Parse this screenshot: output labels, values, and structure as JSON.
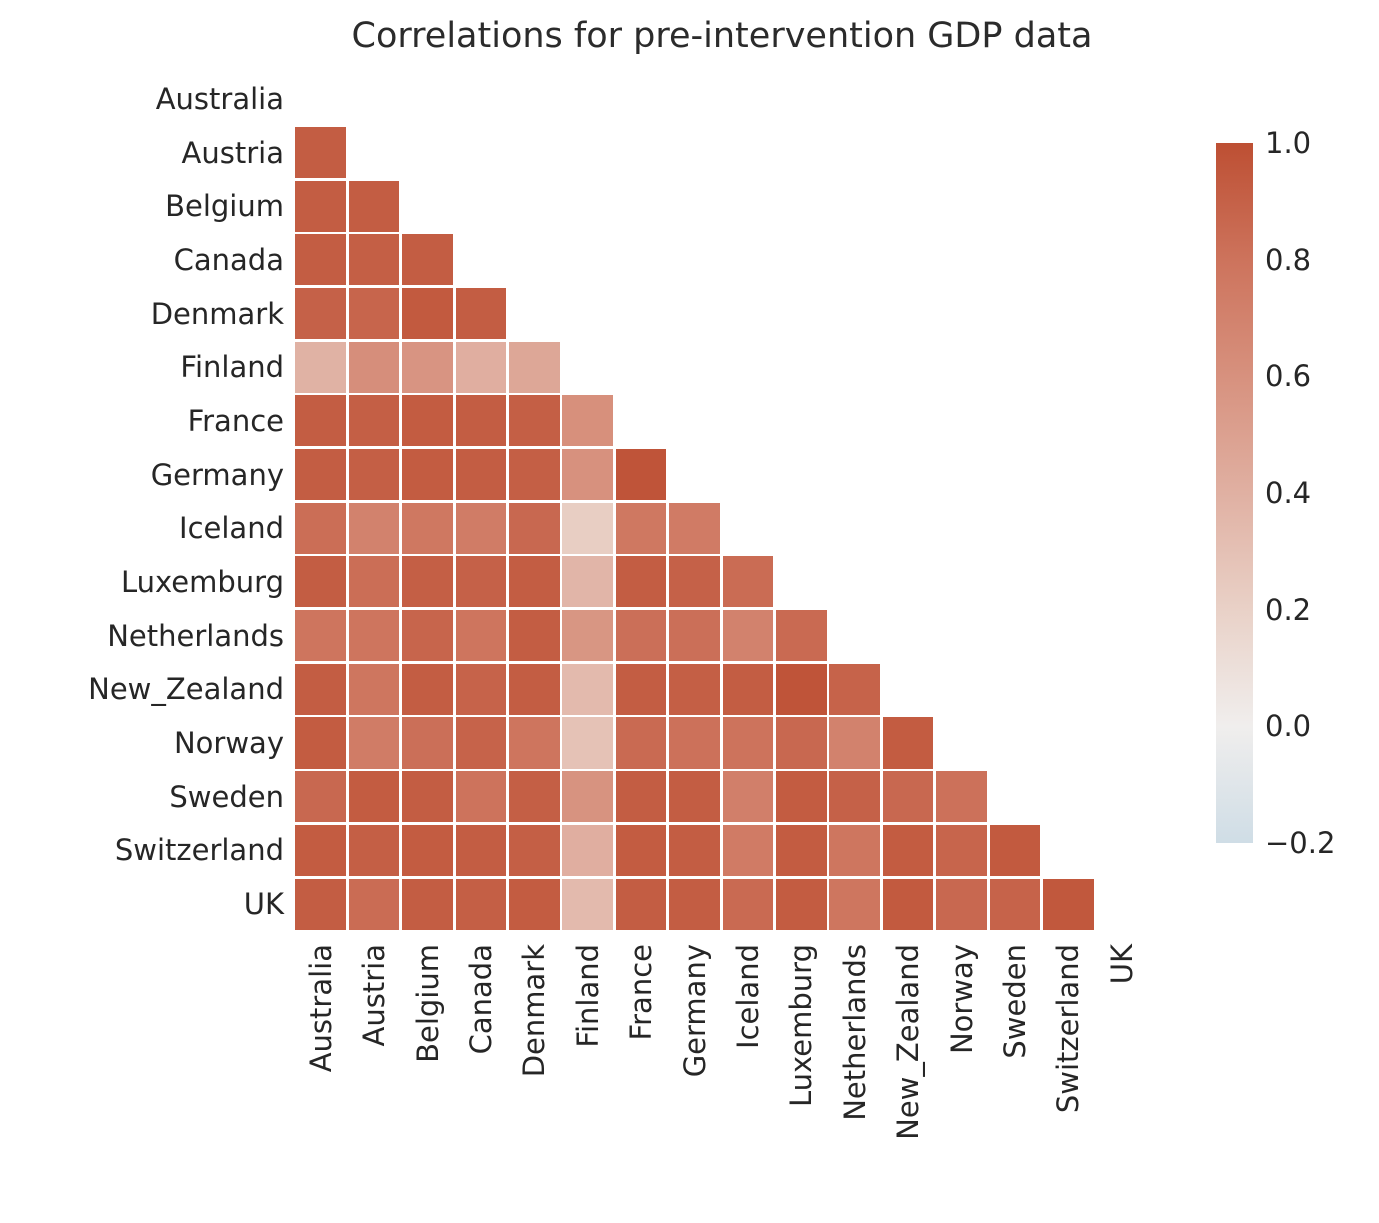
{
  "title": "Correlations for pre-intervention GDP data",
  "chart_data": {
    "type": "heatmap",
    "title": "Correlations for pre-intervention GDP data",
    "subtitle": "",
    "xlabel": "",
    "ylabel": "",
    "categories": [
      "Australia",
      "Austria",
      "Belgium",
      "Canada",
      "Denmark",
      "Finland",
      "France",
      "Germany",
      "Iceland",
      "Luxemburg",
      "Netherlands",
      "New_Zealand",
      "Norway",
      "Sweden",
      "Switzerland",
      "UK"
    ],
    "mask": "upper triangle and diagonal hidden; only lower-triangle pairwise correlations shown",
    "grid": "white gaps between cells, no axis spines, no tick marks",
    "legend_position": "vertical colorbar at right",
    "value_range": [
      -0.2,
      1.0
    ],
    "rows": [
      {
        "name": "Australia",
        "values": []
      },
      {
        "name": "Austria",
        "values": [
          0.92
        ]
      },
      {
        "name": "Belgium",
        "values": [
          0.92,
          0.92
        ]
      },
      {
        "name": "Canada",
        "values": [
          0.92,
          0.91,
          0.92
        ]
      },
      {
        "name": "Denmark",
        "values": [
          0.9,
          0.88,
          0.94,
          0.92
        ]
      },
      {
        "name": "Finland",
        "values": [
          0.39,
          0.62,
          0.58,
          0.41,
          0.46
        ]
      },
      {
        "name": "France",
        "values": [
          0.92,
          0.91,
          0.93,
          0.92,
          0.91,
          0.61
        ]
      },
      {
        "name": "Germany",
        "values": [
          0.92,
          0.91,
          0.93,
          0.92,
          0.91,
          0.6,
          0.97
        ]
      },
      {
        "name": "Iceland",
        "values": [
          0.83,
          0.7,
          0.77,
          0.74,
          0.86,
          0.22,
          0.77,
          0.75
        ]
      },
      {
        "name": "Luxemburg",
        "values": [
          0.92,
          0.83,
          0.91,
          0.9,
          0.92,
          0.37,
          0.92,
          0.9,
          0.84
        ]
      },
      {
        "name": "Netherlands",
        "values": [
          0.79,
          0.79,
          0.88,
          0.79,
          0.92,
          0.57,
          0.82,
          0.82,
          0.7,
          0.85
        ]
      },
      {
        "name": "New_Zealand",
        "values": [
          0.92,
          0.78,
          0.92,
          0.89,
          0.92,
          0.34,
          0.92,
          0.91,
          0.92,
          0.97,
          0.89
        ]
      },
      {
        "name": "Norway",
        "values": [
          0.93,
          0.74,
          0.82,
          0.89,
          0.79,
          0.29,
          0.85,
          0.81,
          0.8,
          0.86,
          0.7,
          0.93
        ]
      },
      {
        "name": "Sweden",
        "values": [
          0.86,
          0.93,
          0.92,
          0.8,
          0.91,
          0.59,
          0.92,
          0.92,
          0.72,
          0.93,
          0.9,
          0.86,
          0.81
        ]
      },
      {
        "name": "Switzerland",
        "values": [
          0.93,
          0.91,
          0.93,
          0.92,
          0.91,
          0.41,
          0.93,
          0.92,
          0.75,
          0.93,
          0.78,
          0.93,
          0.88,
          0.94
        ]
      },
      {
        "name": "UK",
        "values": [
          0.92,
          0.84,
          0.92,
          0.91,
          0.93,
          0.34,
          0.92,
          0.92,
          0.85,
          0.93,
          0.78,
          0.94,
          0.86,
          0.89,
          0.95
        ]
      }
    ],
    "colorbar_ticks": [
      "1.0",
      "0.8",
      "0.6",
      "0.4",
      "0.2",
      "0.0",
      "−0.2"
    ],
    "colorbar_tick_values": [
      1.0,
      0.8,
      0.6,
      0.4,
      0.2,
      0.0,
      -0.2
    ],
    "colormap_anchors": [
      {
        "value": 1.0,
        "color": "#bd4f33"
      },
      {
        "value": 0.8,
        "color": "#cd735c"
      },
      {
        "value": 0.6,
        "color": "#d7917e"
      },
      {
        "value": 0.4,
        "color": "#e0b0a2"
      },
      {
        "value": 0.2,
        "color": "#e9d1c7"
      },
      {
        "value": 0.0,
        "color": "#f0eeed"
      },
      {
        "value": -0.2,
        "color": "#cfdde6"
      }
    ]
  }
}
